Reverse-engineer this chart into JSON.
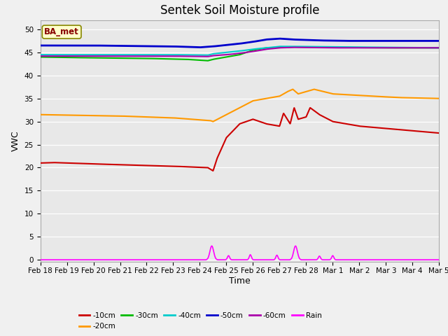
{
  "title": "Sentek Soil Moisture profile",
  "xlabel": "Time",
  "ylabel": "VWC",
  "legend_label": "BA_met",
  "ylim": [
    -0.5,
    52
  ],
  "xlim": [
    0,
    15
  ],
  "yticks": [
    0,
    5,
    10,
    15,
    20,
    25,
    30,
    35,
    40,
    45,
    50
  ],
  "xtick_labels": [
    "Feb 18",
    "Feb 19",
    "Feb 20",
    "Feb 21",
    "Feb 22",
    "Feb 23",
    "Feb 24",
    "Feb 25",
    "Feb 26",
    "Feb 27",
    "Feb 28",
    "Mar 1",
    "Mar 2",
    "Mar 3",
    "Mar 4",
    "Mar 5"
  ],
  "series": {
    "-10cm": {
      "color": "#cc0000",
      "lw": 1.5
    },
    "-20cm": {
      "color": "#ff9900",
      "lw": 1.5
    },
    "-30cm": {
      "color": "#00bb00",
      "lw": 1.5
    },
    "-40cm": {
      "color": "#00cccc",
      "lw": 1.5
    },
    "-50cm": {
      "color": "#0000cc",
      "lw": 2.0
    },
    "-60cm": {
      "color": "#aa00aa",
      "lw": 1.5
    },
    "Rain": {
      "color": "#ff00ff",
      "lw": 1.2
    }
  },
  "fig_bg": "#f0f0f0",
  "plot_bg": "#e8e8e8",
  "grid_color": "#ffffff",
  "title_fontsize": 12,
  "axis_fontsize": 9,
  "tick_fontsize": 7.5
}
